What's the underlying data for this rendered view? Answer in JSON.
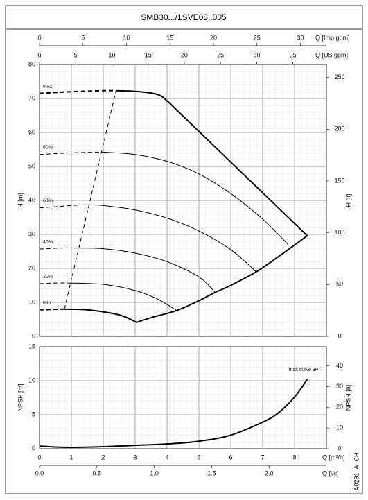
{
  "title": "SMB30.../1SVE08..005",
  "code": "A0291_A_CH",
  "chart_data": [
    {
      "type": "line",
      "ylabel": "H [m]",
      "ylim": [
        0,
        80
      ],
      "yticks": [
        0,
        10,
        20,
        30,
        40,
        50,
        60,
        70,
        80
      ],
      "y2label": "H [ft]",
      "y2lim": [
        0,
        262.5
      ],
      "y2ticks": [
        0,
        50,
        100,
        150,
        200,
        250
      ],
      "xlim": [
        0,
        9
      ],
      "grid": true,
      "minor_grid": true,
      "top_axes": [
        {
          "label": "Q [Imp gpm]",
          "lim": [
            0,
            32.99
          ],
          "ticks": [
            0,
            5,
            10,
            15,
            20,
            25,
            30
          ]
        },
        {
          "label": "Q [US gpm]",
          "lim": [
            0,
            39.63
          ],
          "ticks": [
            0,
            5,
            10,
            15,
            20,
            25,
            30,
            35
          ]
        }
      ],
      "series": [
        {
          "name": "max",
          "color": "#000",
          "bold": true,
          "dashed": true,
          "x": [
            0,
            1,
            2,
            2.4
          ],
          "values": [
            71.5,
            72,
            72.3,
            72.3
          ]
        },
        {
          "color": "#000",
          "bold": true,
          "x": [
            2.4,
            3,
            3.5,
            3.8,
            4.0,
            4.05
          ],
          "values": [
            72.3,
            72.1,
            71.6,
            70.8,
            69.3,
            68.9
          ]
        },
        {
          "color": "#000",
          "bold": true,
          "x": [
            4.05,
            8.4
          ],
          "values": [
            68.9,
            29.6
          ]
        },
        {
          "name": "80%",
          "color": "#000",
          "dashed": true,
          "x": [
            0,
            1,
            2
          ],
          "values": [
            53.5,
            54,
            54.2
          ]
        },
        {
          "color": "#000",
          "x": [
            2,
            3,
            4,
            5,
            6,
            7,
            7.8
          ],
          "values": [
            54.2,
            53.5,
            51.5,
            47.8,
            42,
            34.5,
            27
          ]
        },
        {
          "name": "60%",
          "color": "#000",
          "dashed": true,
          "x": [
            0,
            1,
            1.4
          ],
          "values": [
            37.8,
            38.5,
            38.7
          ]
        },
        {
          "color": "#000",
          "x": [
            1.4,
            2,
            3,
            4,
            5,
            6,
            6.8
          ],
          "values": [
            38.7,
            38.5,
            37.2,
            34.8,
            31,
            25.5,
            19
          ]
        },
        {
          "name": "40%",
          "color": "#000",
          "dashed": true,
          "x": [
            0,
            0.7,
            1.1
          ],
          "values": [
            25.7,
            26,
            26
          ]
        },
        {
          "color": "#000",
          "x": [
            1.1,
            2,
            3,
            4,
            5,
            5.5
          ],
          "values": [
            26,
            25.8,
            24.5,
            22,
            17.5,
            13
          ]
        },
        {
          "name": "20%",
          "color": "#000",
          "dashed": true,
          "x": [
            0,
            0.5,
            0.9
          ],
          "values": [
            15.5,
            15.7,
            15.7
          ]
        },
        {
          "color": "#000",
          "x": [
            0.9,
            2,
            3,
            3.7,
            4.3
          ],
          "values": [
            15.7,
            15.3,
            13.5,
            11,
            7.6
          ]
        },
        {
          "name": "min",
          "color": "#000",
          "bold": true,
          "dashed": true,
          "x": [
            0,
            0.7
          ],
          "values": [
            7.8,
            8
          ]
        },
        {
          "color": "#000",
          "bold": true,
          "x": [
            0.7,
            1.5,
            2.5,
            3.05
          ],
          "values": [
            8,
            7.8,
            6.3,
            4.1
          ]
        },
        {
          "color": "#000",
          "bold": true,
          "x": [
            3.05,
            3.5,
            4.3,
            5,
            5.5,
            6,
            6.8,
            7.5,
            8.4
          ],
          "values": [
            4.1,
            5.5,
            7.6,
            10.5,
            12.9,
            15,
            19,
            23.5,
            29.6
          ]
        },
        {
          "color": "#000",
          "dashed": true,
          "x": [
            0.78,
            2.4
          ],
          "values": [
            8,
            72.3
          ]
        }
      ]
    },
    {
      "type": "line",
      "ylabel": "NPSH [m]",
      "ylim": [
        0,
        15
      ],
      "yticks": [
        0,
        5,
        10,
        15
      ],
      "y2label": "NPSH [ft]",
      "y2lim": [
        0,
        49.21
      ],
      "y2ticks": [
        0,
        10,
        20,
        30,
        40
      ],
      "xlabel": "Q [m³/h]",
      "xlim": [
        0,
        9
      ],
      "xticks": [
        0,
        1,
        2,
        3,
        4,
        5,
        6,
        7,
        8
      ],
      "grid": true,
      "minor_grid": true,
      "x2label": "Q [l/s]",
      "x2lim": [
        0,
        2.5
      ],
      "x2ticks": [
        {
          "value": 0,
          "label": "0.0"
        },
        0.5,
        {
          "value": 1,
          "label": "1.0"
        },
        1.5,
        {
          "value": 2,
          "label": "2.0"
        }
      ],
      "series": [
        {
          "name": "max curve 3P",
          "color": "#000",
          "bold": true,
          "x": [
            0,
            0.5,
            1,
            2,
            3,
            4,
            5,
            6,
            7,
            7.5,
            8,
            8.4
          ],
          "values": [
            0.4,
            0.25,
            0.2,
            0.3,
            0.5,
            0.7,
            1.1,
            2,
            3.9,
            5.3,
            7.6,
            10.2
          ]
        }
      ]
    }
  ]
}
